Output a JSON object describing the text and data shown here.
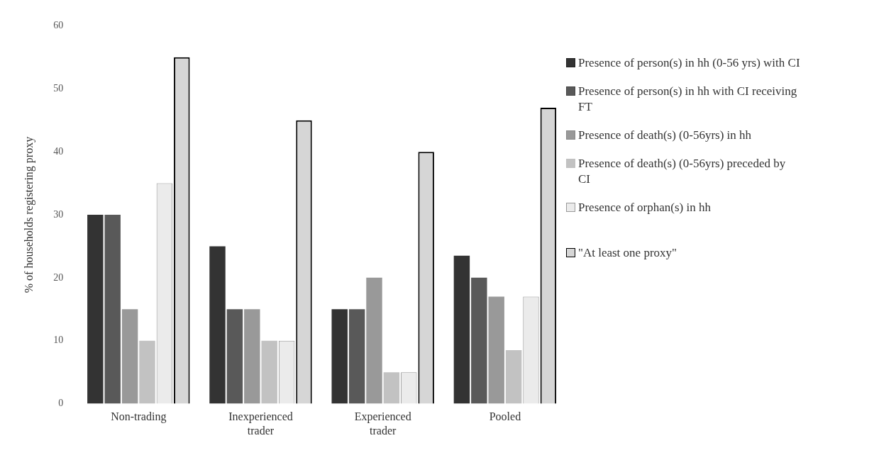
{
  "chart_data": {
    "type": "bar",
    "ylabel": "% of households registering proxy",
    "categories": [
      "Non-trading",
      "Inexperienced trader",
      "Experienced trader",
      "Pooled"
    ],
    "series": [
      {
        "name": "Presence of person(s) in hh (0-56 yrs) with CI",
        "color": "#333333",
        "values": [
          30,
          25,
          15,
          23.5
        ]
      },
      {
        "name": "Presence of person(s) in hh with CI receiving FT",
        "color": "#595959",
        "values": [
          30,
          15,
          15,
          20
        ]
      },
      {
        "name": "Presence of death(s) (0-56yrs) in hh",
        "color": "#999999",
        "values": [
          15,
          15,
          20,
          17
        ]
      },
      {
        "name": "Presence of death(s) (0-56yrs) preceded by CI",
        "color": "#c2c2c2",
        "values": [
          10,
          10,
          5,
          8.5
        ]
      },
      {
        "name": "Presence of orphan(s) in hh",
        "color": "#ebebeb",
        "values": [
          35,
          10,
          5,
          17
        ]
      },
      {
        "name": "\"At least one proxy\"",
        "color": "#d6d6d6",
        "values": [
          55,
          45,
          40,
          47
        ]
      }
    ],
    "ylim": [
      0,
      60
    ],
    "yticks": [
      0,
      10,
      20,
      30,
      40,
      50,
      60
    ],
    "grid": false,
    "legend": "right"
  }
}
